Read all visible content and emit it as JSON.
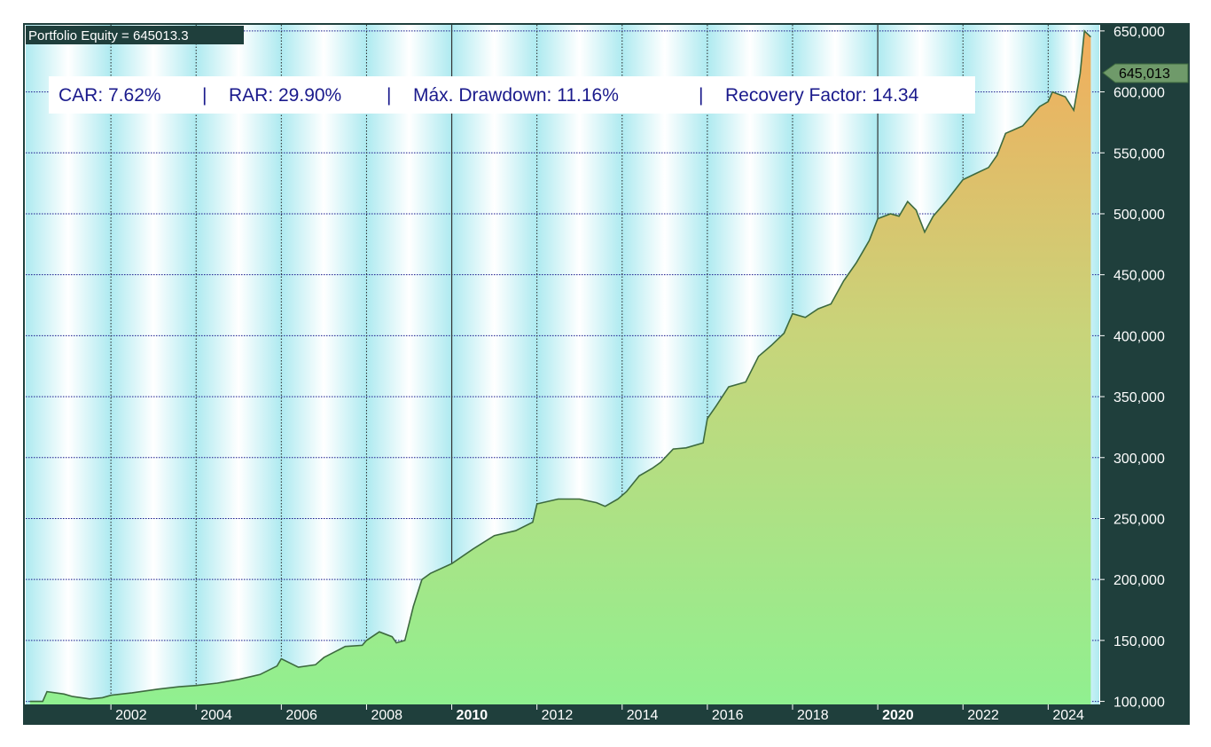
{
  "header": {
    "title": "Portfolio Equity = 645013.3"
  },
  "stats": {
    "car": "CAR: 7.62%",
    "sep1": "|",
    "rar": "RAR: 29.90%",
    "sep2": "|",
    "maxdd": "Máx. Drawdown: 11.16%",
    "sep3": "|",
    "recovery": "Recovery Factor: 14.34"
  },
  "last_value_label": "645,013",
  "colors": {
    "panel_dark": "#1f3f3c",
    "grid_dotted": "#1a1a8c",
    "line": "#3d6a3f",
    "fill_top": "#f2ad5c",
    "fill_mid": "#c8d47a",
    "fill_bottom": "#90f090",
    "band_cyan": "#aeeaf0",
    "band_white": "#ffffff",
    "label_green": "#6f9a6a",
    "stats_text": "#1a1a8c"
  },
  "chart_data": {
    "type": "area",
    "title": "Portfolio Equity = 645013.3",
    "xlabel": "",
    "ylabel": "",
    "xlim": [
      2000.0,
      2025.2
    ],
    "ylim": [
      97500,
      655000
    ],
    "grid": true,
    "y_ticks": [
      100000,
      150000,
      200000,
      250000,
      300000,
      350000,
      400000,
      450000,
      500000,
      550000,
      600000,
      650000
    ],
    "y_tick_labels": [
      "100,000",
      "150,000",
      "200,000",
      "250,000",
      "300,000",
      "350,000",
      "400,000",
      "450,000",
      "500,000",
      "550,000",
      "600,000",
      "650,000"
    ],
    "x_ticks": [
      2002,
      2004,
      2006,
      2008,
      2010,
      2012,
      2014,
      2016,
      2018,
      2020,
      2022,
      2024
    ],
    "x_tick_labels": [
      "2002",
      "2004",
      "2006",
      "2008",
      "2010",
      "2012",
      "2014",
      "2016",
      "2018",
      "2020",
      "2022",
      "2024"
    ],
    "bold_x_ticks": [
      "2010",
      "2020"
    ],
    "series": [
      {
        "x": [
          2000.1,
          2000.4,
          2000.5,
          2000.9,
          2001.1,
          2001.5,
          2001.8,
          2002.0,
          2002.5,
          2002.9,
          2003.1,
          2003.6,
          2004.0,
          2004.5,
          2005.0,
          2005.5,
          2005.9,
          2006.0,
          2006.4,
          2006.8,
          2007.0,
          2007.5,
          2007.9,
          2008.0,
          2008.3,
          2008.6,
          2008.7,
          2008.9,
          2009.1,
          2009.3,
          2009.5,
          2010.0,
          2010.5,
          2011.0,
          2011.5,
          2011.9,
          2012.0,
          2012.5,
          2013.0,
          2013.4,
          2013.6,
          2013.9,
          2014.1,
          2014.4,
          2014.7,
          2014.9,
          2015.2,
          2015.5,
          2015.9,
          2016.0,
          2016.2,
          2016.5,
          2016.9,
          2017.2,
          2017.5,
          2017.8,
          2018.0,
          2018.3,
          2018.6,
          2018.9,
          2019.2,
          2019.5,
          2019.8,
          2020.0,
          2020.3,
          2020.5,
          2020.7,
          2020.9,
          2021.1,
          2021.3,
          2021.6,
          2022.0,
          2022.3,
          2022.6,
          2022.8,
          2023.0,
          2023.4,
          2023.8,
          2024.0,
          2024.1,
          2024.4,
          2024.6,
          2024.75,
          2024.85,
          2025.0
        ],
        "values": [
          100000,
          100000,
          108000,
          106000,
          104000,
          102000,
          103000,
          105000,
          107000,
          109000,
          110000,
          112000,
          113000,
          115000,
          118000,
          122000,
          129000,
          135000,
          128000,
          130000,
          136000,
          145000,
          146000,
          150000,
          157000,
          153000,
          148000,
          150000,
          178000,
          200000,
          205000,
          213000,
          225000,
          236000,
          240000,
          247000,
          262000,
          266000,
          266000,
          263000,
          260000,
          266000,
          272000,
          285000,
          291000,
          296000,
          307000,
          308000,
          312000,
          332000,
          342000,
          358000,
          362000,
          383000,
          392000,
          402000,
          418000,
          415000,
          422000,
          426000,
          445000,
          460000,
          478000,
          496000,
          500000,
          498000,
          510000,
          503000,
          485000,
          498000,
          510000,
          528000,
          533000,
          538000,
          548000,
          566000,
          572000,
          588000,
          592000,
          600000,
          596000,
          585000,
          615000,
          650000,
          645013
        ]
      }
    ],
    "last_value": 645013.3
  }
}
